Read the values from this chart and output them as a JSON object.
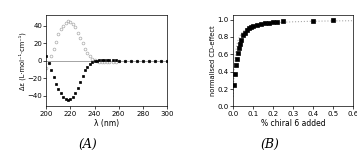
{
  "panel_A": {
    "xlabel": "λ (nm)",
    "ylabel": "Δε (L·mol⁻¹·cm⁻¹)",
    "xlim": [
      200,
      300
    ],
    "ylim": [
      -52,
      52
    ],
    "xticks": [
      200,
      220,
      240,
      260,
      280,
      300
    ],
    "yticks": [
      -40,
      -20,
      0,
      20,
      40
    ],
    "open_circles_x": [
      200,
      202,
      204,
      206,
      208,
      210,
      212,
      214,
      216,
      218,
      220,
      222,
      224,
      226,
      228,
      230,
      232,
      234,
      236,
      238,
      240,
      242,
      244,
      246,
      248,
      250,
      252,
      255,
      258,
      260,
      265,
      270,
      275,
      280,
      285,
      290,
      295,
      300
    ],
    "open_circles_y": [
      -8,
      -2,
      5,
      13,
      22,
      30,
      36,
      40,
      43,
      45,
      44,
      42,
      38,
      32,
      26,
      20,
      14,
      9,
      5,
      2,
      0.5,
      -0.5,
      -1,
      -1.5,
      -1.5,
      -1.5,
      -1.5,
      -1,
      -1,
      -0.5,
      -0.2,
      0,
      0,
      0,
      0,
      0,
      0,
      0
    ],
    "closed_squares_x": [
      200,
      202,
      204,
      206,
      208,
      210,
      212,
      214,
      216,
      218,
      220,
      222,
      224,
      226,
      228,
      230,
      232,
      234,
      236,
      238,
      240,
      242,
      244,
      246,
      248,
      250,
      252,
      255,
      258,
      260,
      265,
      270,
      275,
      280,
      285,
      290,
      295,
      300
    ],
    "closed_squares_y": [
      5,
      -2,
      -10,
      -18,
      -26,
      -32,
      -37,
      -41,
      -44,
      -45,
      -44,
      -41,
      -37,
      -31,
      -24,
      -17,
      -11,
      -7,
      -3.5,
      -1.5,
      -0.5,
      0,
      0.5,
      1,
      1,
      1,
      1,
      0.8,
      0.5,
      0.3,
      0,
      0,
      0,
      0,
      0,
      0,
      0,
      0
    ]
  },
  "panel_B": {
    "xlabel": "% chiral 6 added",
    "ylabel": "normalised CD-effect",
    "xlim": [
      0,
      0.6
    ],
    "ylim": [
      0.0,
      1.05
    ],
    "xticks": [
      0.0,
      0.1,
      0.2,
      0.3,
      0.4,
      0.5,
      0.6
    ],
    "yticks": [
      0.0,
      0.2,
      0.4,
      0.6,
      0.8,
      1.0
    ],
    "data_x": [
      0.005,
      0.01,
      0.015,
      0.02,
      0.025,
      0.03,
      0.035,
      0.04,
      0.05,
      0.06,
      0.07,
      0.08,
      0.09,
      0.1,
      0.12,
      0.14,
      0.16,
      0.18,
      0.2,
      0.22,
      0.25,
      0.4,
      0.5
    ],
    "data_y": [
      0.25,
      0.37,
      0.48,
      0.55,
      0.62,
      0.67,
      0.72,
      0.76,
      0.82,
      0.85,
      0.88,
      0.9,
      0.91,
      0.925,
      0.94,
      0.95,
      0.96,
      0.965,
      0.97,
      0.975,
      0.98,
      0.985,
      0.99
    ]
  },
  "label_A": "(A)",
  "label_B": "(B)",
  "background_color": "#ffffff",
  "open_color": "#aaaaaa",
  "closed_color": "#000000",
  "fit_color": "#aaaaaa"
}
